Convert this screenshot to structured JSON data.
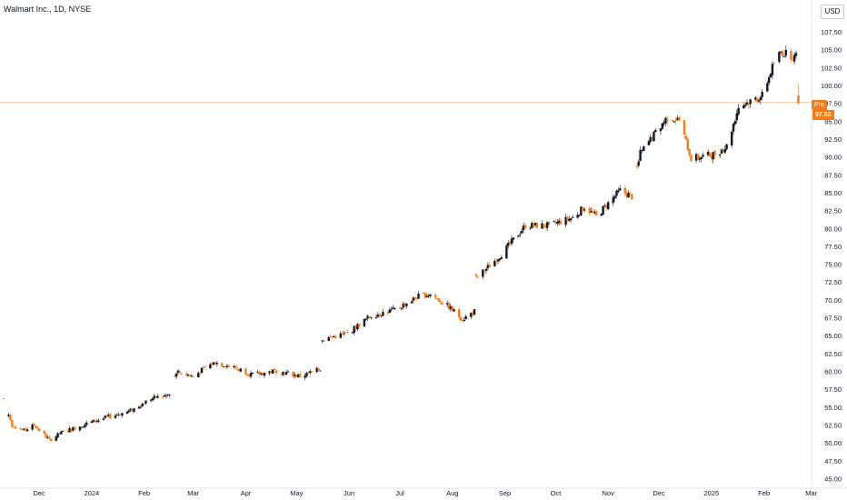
{
  "header": {
    "title": "Walmart Inc., 1D, NYSE",
    "currency": "USD"
  },
  "premarket": {
    "label": "Pre",
    "value": "97.63"
  },
  "colors": {
    "up": "#131722",
    "down": "#f57c17",
    "premarket_line": "#f57c17"
  },
  "chart_data": {
    "type": "candlestick",
    "title": "Walmart Inc., 1D, NYSE",
    "ylabel": "USD",
    "ylim": [
      45.0,
      109.0
    ],
    "y_ticks": [
      "45.00",
      "47.50",
      "50.00",
      "52.50",
      "55.00",
      "57.50",
      "60.00",
      "62.50",
      "65.00",
      "67.50",
      "70.00",
      "72.50",
      "75.00",
      "77.50",
      "80.00",
      "82.50",
      "85.00",
      "87.50",
      "90.00",
      "92.50",
      "95.00",
      "97.50",
      "100.00",
      "102.50",
      "105.00",
      "107.50"
    ],
    "x_ticks": [
      "Dec",
      "2024",
      "Feb",
      "Mar",
      "Apr",
      "May",
      "Jun",
      "Jul",
      "Aug",
      "Sep",
      "Oct",
      "Nov",
      "Dec",
      "2025",
      "Feb",
      "Mar"
    ],
    "date_range": [
      "2023-11-10",
      "2025-02-20"
    ],
    "premarket_price": 97.63,
    "series": [
      {
        "keypoints": [
          [
            "2023-11-10",
            56.2
          ],
          [
            "2023-11-15",
            52.5
          ],
          [
            "2023-11-22",
            51.7
          ],
          [
            "2023-11-28",
            52.5
          ],
          [
            "2023-12-07",
            50.4
          ],
          [
            "2023-12-15",
            51.5
          ],
          [
            "2023-12-29",
            52.7
          ],
          [
            "2024-01-12",
            53.7
          ],
          [
            "2024-01-24",
            54.5
          ],
          [
            "2024-02-05",
            56.2
          ],
          [
            "2024-02-16",
            56.7
          ],
          [
            "2024-02-20",
            60.0
          ],
          [
            "2024-03-01",
            59.3
          ],
          [
            "2024-03-08",
            60.5
          ],
          [
            "2024-03-14",
            61.3
          ],
          [
            "2024-03-28",
            60.3
          ],
          [
            "2024-04-05",
            59.5
          ],
          [
            "2024-04-19",
            60.1
          ],
          [
            "2024-05-03",
            59.3
          ],
          [
            "2024-05-15",
            60.3
          ],
          [
            "2024-05-16",
            64.5
          ],
          [
            "2024-05-31",
            65.3
          ],
          [
            "2024-06-14",
            67.8
          ],
          [
            "2024-06-28",
            68.6
          ],
          [
            "2024-07-12",
            70.5
          ],
          [
            "2024-07-19",
            70.8
          ],
          [
            "2024-07-31",
            68.8
          ],
          [
            "2024-08-07",
            67.3
          ],
          [
            "2024-08-14",
            68.4
          ],
          [
            "2024-08-15",
            73.0
          ],
          [
            "2024-08-30",
            76.4
          ],
          [
            "2024-09-13",
            80.4
          ],
          [
            "2024-09-27",
            80.4
          ],
          [
            "2024-10-11",
            81.5
          ],
          [
            "2024-10-18",
            83.0
          ],
          [
            "2024-10-25",
            81.7
          ],
          [
            "2024-11-08",
            85.3
          ],
          [
            "2024-11-15",
            84.5
          ],
          [
            "2024-11-20",
            90.5
          ],
          [
            "2024-12-06",
            95.6
          ],
          [
            "2024-12-13",
            95.1
          ],
          [
            "2024-12-20",
            89.8
          ],
          [
            "2025-01-03",
            90.4
          ],
          [
            "2025-01-10",
            91.5
          ],
          [
            "2025-01-17",
            97.0
          ],
          [
            "2025-01-31",
            98.6
          ],
          [
            "2025-02-07",
            103.2
          ],
          [
            "2025-02-11",
            104.7
          ],
          [
            "2025-02-19",
            104.0
          ]
        ]
      }
    ]
  }
}
